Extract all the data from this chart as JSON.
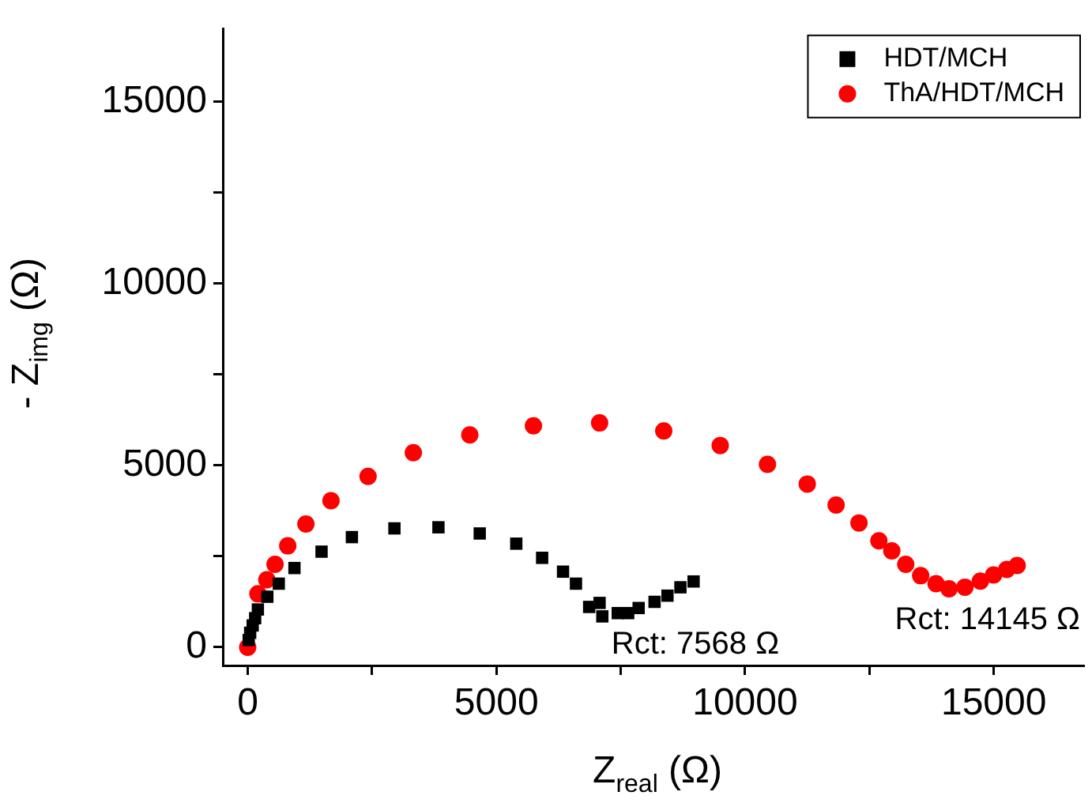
{
  "chart_data": {
    "type": "scatter",
    "xlabel": "Z$_{real}$ (Ω)",
    "ylabel": "- Z$_{img}$ (Ω)",
    "xlim": [
      -500,
      16800
    ],
    "ylim": [
      -500,
      17000
    ],
    "xticks": [
      0,
      {
        "value": 2500,
        "label": null
      },
      5000,
      {
        "value": 7500,
        "label": null
      },
      10000,
      {
        "value": 12500,
        "label": null
      },
      15000
    ],
    "yticks": [
      0,
      {
        "value": 2500,
        "label": null
      },
      5000,
      {
        "value": 7500,
        "label": null
      },
      10000,
      {
        "value": 12500,
        "label": null
      },
      15000
    ],
    "grid": false,
    "legend": "top right",
    "series": [
      {
        "name": "HDT/MCH",
        "color": "#000000",
        "marker": "square",
        "x": [
          20,
          50,
          100,
          150,
          205,
          395,
          625,
          940,
          1485,
          2095,
          2950,
          3835,
          4665,
          5400,
          5920,
          6340,
          6600,
          6865,
          7075,
          7130,
          7440,
          7650,
          7860,
          8180,
          8440,
          8700,
          8965
        ],
        "values": [
          200,
          400,
          600,
          800,
          1040,
          1390,
          1750,
          2180,
          2630,
          3030,
          3270,
          3300,
          3130,
          2850,
          2460,
          2080,
          1750,
          1110,
          1220,
          850,
          940,
          940,
          1080,
          1250,
          1420,
          1650,
          1810
        ]
      },
      {
        "name": "ThA/HDT/MCH",
        "color": "#ff0000",
        "marker": "circle",
        "x": [
          0,
          205,
          385,
          550,
          805,
          1170,
          1675,
          2420,
          3330,
          4465,
          5745,
          7075,
          8365,
          9500,
          10450,
          11250,
          11830,
          12290,
          12690,
          12950,
          13230,
          13530,
          13840,
          14100,
          14420,
          14730,
          14995,
          15260,
          15470
        ],
        "values": [
          0,
          1470,
          1860,
          2280,
          2790,
          3390,
          4030,
          4700,
          5350,
          5840,
          6090,
          6170,
          5950,
          5550,
          5030,
          4490,
          3910,
          3420,
          2930,
          2650,
          2280,
          1970,
          1750,
          1610,
          1650,
          1820,
          1990,
          2140,
          2250
        ]
      }
    ],
    "annotations": [
      {
        "text": "Rct: 7568 Ω",
        "x": 7568,
        "y": 940
      },
      {
        "text": "Rct: 14145 Ω",
        "x": 14145,
        "y": 1610
      }
    ]
  }
}
